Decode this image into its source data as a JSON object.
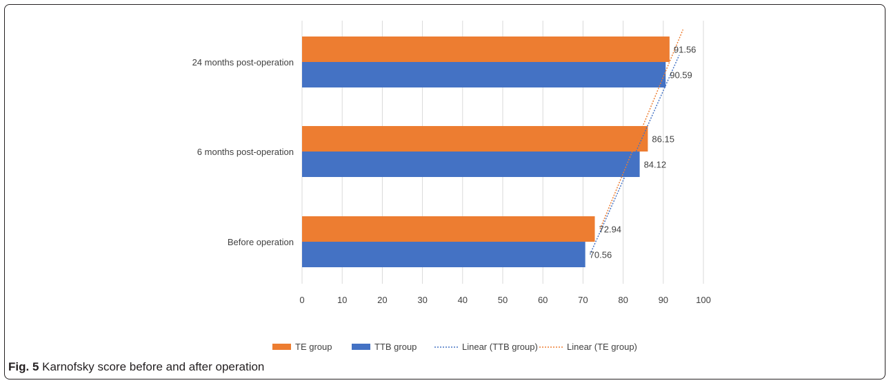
{
  "caption": {
    "fig_label": "Fig. 5",
    "text": "Karnofsky score before and after operation"
  },
  "chart_data": {
    "type": "bar",
    "orientation": "horizontal",
    "categories": [
      "Before operation",
      "6 months post-operation",
      "24 months post-operation"
    ],
    "series": [
      {
        "name": "TE group",
        "values": [
          72.94,
          86.15,
          91.56
        ],
        "color": "#ed7d31"
      },
      {
        "name": "TTB group",
        "values": [
          70.56,
          84.12,
          90.59
        ],
        "color": "#4472c4"
      }
    ],
    "trendlines": [
      {
        "name": "Linear (TTB group)",
        "of": "TTB group",
        "style": "dotted",
        "color": "#4472c4"
      },
      {
        "name": "Linear (TE group)",
        "of": "TE group",
        "style": "dotted",
        "color": "#ed7d31"
      }
    ],
    "xlim": [
      0,
      100
    ],
    "xticks": [
      0,
      10,
      20,
      30,
      40,
      50,
      60,
      70,
      80,
      90,
      100
    ],
    "grid": true,
    "legend_position": "bottom",
    "title": "",
    "xlabel": "",
    "ylabel": ""
  }
}
